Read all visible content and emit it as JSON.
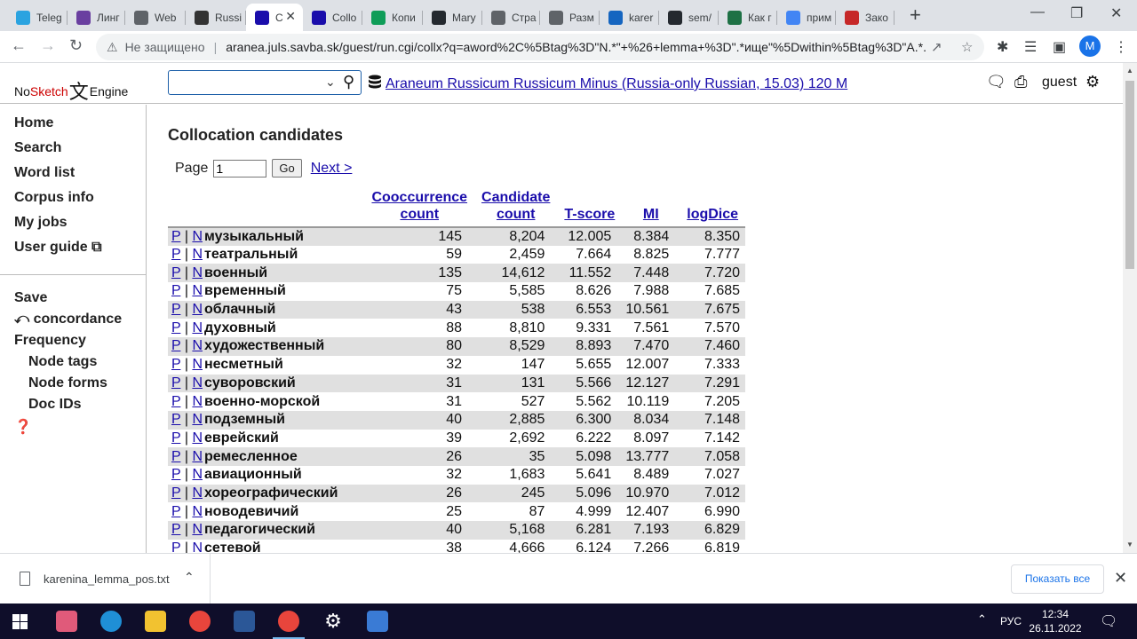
{
  "browser": {
    "tabs": [
      {
        "label": "Teleg",
        "color": "#2aa3e0"
      },
      {
        "label": "Линг",
        "color": "#6a3fa0"
      },
      {
        "label": "Web",
        "color": "#5f6368"
      },
      {
        "label": "Russi",
        "color": "#333333"
      },
      {
        "label": "C",
        "color": "#1a0dab"
      },
      {
        "label": "Collo",
        "color": "#1a0dab"
      },
      {
        "label": "Копи",
        "color": "#0f9d58"
      },
      {
        "label": "Mary",
        "color": "#24292f"
      },
      {
        "label": "Стра",
        "color": "#5f6368"
      },
      {
        "label": "Разм",
        "color": "#5f6368"
      },
      {
        "label": "karer",
        "color": "#1565c0"
      },
      {
        "label": "sem/",
        "color": "#24292f"
      },
      {
        "label": "Как г",
        "color": "#1e7145"
      },
      {
        "label": "прим",
        "color": "#4285f4"
      },
      {
        "label": "Зако",
        "color": "#c62828"
      }
    ],
    "address": {
      "security_label": "Не защищено",
      "url": "aranea.juls.savba.sk/guest/run.cgi/collx?q=aword%2C%5Btag%3D\"N.*\"+%26+lemma+%3D\".*ище\"%5Dwithin%5Btag%3D\"A.*..."
    },
    "profile_initial": "M"
  },
  "header": {
    "logo_no": "No",
    "logo_sketch": "Sketch",
    "logo_glyph": "文",
    "logo_engine": "Engine",
    "corpus_name": "Araneum Russicum Russicum Minus (Russia-only Russian, 15.03) 120 M",
    "user": "guest"
  },
  "sidebar": {
    "items": [
      {
        "label": "Home"
      },
      {
        "label": "Search"
      },
      {
        "label": "Word list"
      },
      {
        "label": "Corpus info"
      },
      {
        "label": "My jobs"
      },
      {
        "label": "User guide"
      }
    ],
    "save_label": "Save",
    "concordance_label": "concordance",
    "frequency_label": "Frequency",
    "freq_items": [
      {
        "label": "Node tags"
      },
      {
        "label": "Node forms"
      },
      {
        "label": "Doc IDs"
      }
    ]
  },
  "main": {
    "title": "Collocation candidates",
    "page_label": "Page",
    "page_value": "1",
    "go_label": "Go",
    "next_label": "Next >",
    "columns": {
      "cooc_line1": "Cooccurrence",
      "cooc_line2": "count",
      "cand_line1": "Candidate",
      "cand_line2": "count",
      "tscore": "T-score",
      "mi": "MI",
      "logdice": "logDice"
    },
    "p_label": "P",
    "n_label": "N",
    "rows": [
      {
        "word": "музыкальный",
        "cooc": "145",
        "cand": "8,204",
        "t": "12.005",
        "mi": "8.384",
        "ld": "8.350"
      },
      {
        "word": "театральный",
        "cooc": "59",
        "cand": "2,459",
        "t": "7.664",
        "mi": "8.825",
        "ld": "7.777"
      },
      {
        "word": "военный",
        "cooc": "135",
        "cand": "14,612",
        "t": "11.552",
        "mi": "7.448",
        "ld": "7.720"
      },
      {
        "word": "временный",
        "cooc": "75",
        "cand": "5,585",
        "t": "8.626",
        "mi": "7.988",
        "ld": "7.685"
      },
      {
        "word": "облачный",
        "cooc": "43",
        "cand": "538",
        "t": "6.553",
        "mi": "10.561",
        "ld": "7.675"
      },
      {
        "word": "духовный",
        "cooc": "88",
        "cand": "8,810",
        "t": "9.331",
        "mi": "7.561",
        "ld": "7.570"
      },
      {
        "word": "художественный",
        "cooc": "80",
        "cand": "8,529",
        "t": "8.893",
        "mi": "7.470",
        "ld": "7.460"
      },
      {
        "word": "несметный",
        "cooc": "32",
        "cand": "147",
        "t": "5.655",
        "mi": "12.007",
        "ld": "7.333"
      },
      {
        "word": "суворовский",
        "cooc": "31",
        "cand": "131",
        "t": "5.566",
        "mi": "12.127",
        "ld": "7.291"
      },
      {
        "word": "военно-морской",
        "cooc": "31",
        "cand": "527",
        "t": "5.562",
        "mi": "10.119",
        "ld": "7.205"
      },
      {
        "word": "подземный",
        "cooc": "40",
        "cand": "2,885",
        "t": "6.300",
        "mi": "8.034",
        "ld": "7.148"
      },
      {
        "word": "еврейский",
        "cooc": "39",
        "cand": "2,692",
        "t": "6.222",
        "mi": "8.097",
        "ld": "7.142"
      },
      {
        "word": "ремесленное",
        "cooc": "26",
        "cand": "35",
        "t": "5.098",
        "mi": "13.777",
        "ld": "7.058"
      },
      {
        "word": "авиационный",
        "cooc": "32",
        "cand": "1,683",
        "t": "5.641",
        "mi": "8.489",
        "ld": "7.027"
      },
      {
        "word": "хореографический",
        "cooc": "26",
        "cand": "245",
        "t": "5.096",
        "mi": "10.970",
        "ld": "7.012"
      },
      {
        "word": "новодевичий",
        "cooc": "25",
        "cand": "87",
        "t": "4.999",
        "mi": "12.407",
        "ld": "6.990"
      },
      {
        "word": "педагогический",
        "cooc": "40",
        "cand": "5,168",
        "t": "6.281",
        "mi": "7.193",
        "ld": "6.829"
      },
      {
        "word": "сетевой",
        "cooc": "38",
        "cand": "4,666",
        "t": "6.124",
        "mi": "7.266",
        "ld": "6.819"
      }
    ]
  },
  "download": {
    "filename": "karenina_lemma_pos.txt",
    "show_all": "Показать все"
  },
  "taskbar": {
    "lang": "РУС",
    "time": "12:34",
    "date": "26.11.2022"
  }
}
